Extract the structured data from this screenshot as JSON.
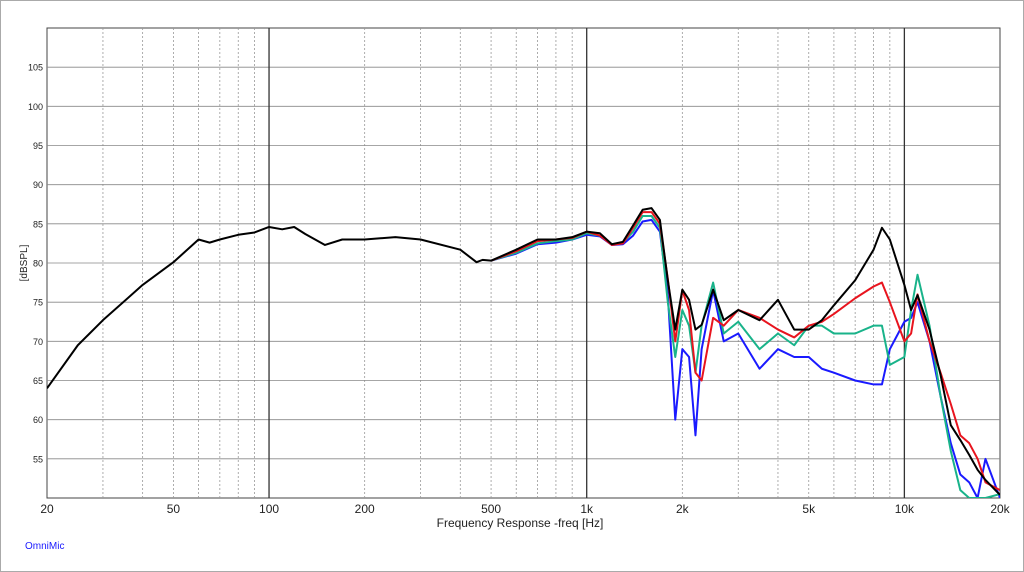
{
  "chart_data": {
    "type": "line",
    "xlabel": "Frequency Response -freq [Hz]",
    "ylabel": "[dBSPL]",
    "footnote": "OmniMic",
    "xscale": "log",
    "grid": true,
    "xlim": [
      20,
      20000
    ],
    "ylim": [
      50,
      110
    ],
    "xticks": [
      20,
      50,
      100,
      200,
      500,
      {
        "value": 1000,
        "label": "1k"
      },
      {
        "value": 2000,
        "label": "2k"
      },
      {
        "value": 5000,
        "label": "5k"
      },
      {
        "value": 10000,
        "label": "10k"
      },
      {
        "value": 20000,
        "label": "20k"
      }
    ],
    "yticks": [
      55,
      60,
      65,
      70,
      75,
      80,
      85,
      90,
      95,
      100,
      105
    ],
    "x": [
      20,
      25,
      30,
      40,
      50,
      60,
      65,
      70,
      80,
      90,
      100,
      110,
      120,
      130,
      150,
      170,
      200,
      250,
      300,
      400,
      450,
      470,
      500,
      600,
      700,
      800,
      900,
      1000,
      1100,
      1200,
      1300,
      1400,
      1500,
      1600,
      1700,
      1800,
      1900,
      2000,
      2100,
      2200,
      2300,
      2500,
      2700,
      3000,
      3500,
      4000,
      4500,
      5000,
      5500,
      6000,
      7000,
      8000,
      8500,
      9000,
      10000,
      10500,
      11000,
      12000,
      13000,
      14000,
      15000,
      16000,
      17000,
      18000,
      20000
    ],
    "series": [
      {
        "color": "#1a1aff",
        "values": [
          null,
          null,
          null,
          null,
          null,
          null,
          null,
          null,
          null,
          null,
          null,
          null,
          null,
          null,
          null,
          null,
          null,
          null,
          null,
          null,
          null,
          null,
          80.3,
          81.2,
          82.4,
          82.6,
          83,
          83.6,
          83.4,
          82.3,
          82.4,
          83.5,
          85.3,
          85.5,
          84,
          76,
          60,
          69,
          68,
          58,
          69,
          76.5,
          70,
          71,
          66.5,
          69,
          68,
          68,
          66.5,
          66,
          65,
          64.5,
          64.5,
          69,
          72.5,
          73,
          75,
          70,
          63,
          57,
          53,
          52,
          50,
          55,
          50
        ]
      },
      {
        "color": "#19b38a",
        "values": [
          null,
          null,
          null,
          null,
          null,
          null,
          null,
          null,
          null,
          null,
          null,
          null,
          null,
          null,
          null,
          null,
          null,
          null,
          null,
          null,
          null,
          null,
          80.3,
          81.3,
          82.5,
          82.8,
          83,
          83.8,
          83.5,
          82.4,
          82.6,
          84,
          86,
          86,
          84.5,
          75,
          68,
          74,
          72,
          66,
          72,
          77.5,
          71,
          72.5,
          69,
          71,
          69.5,
          72,
          72,
          71,
          71,
          72,
          72,
          67,
          68,
          74,
          78.5,
          72,
          63,
          56,
          51,
          50,
          50,
          50,
          50.5
        ]
      },
      {
        "color": "#e8141e",
        "values": [
          null,
          null,
          null,
          null,
          null,
          null,
          null,
          null,
          null,
          null,
          null,
          null,
          null,
          null,
          null,
          null,
          null,
          null,
          null,
          null,
          null,
          null,
          80.3,
          81.5,
          82.8,
          83,
          83.2,
          84,
          83.5,
          82.3,
          82.5,
          84.5,
          86.5,
          86.5,
          85,
          78,
          70,
          76.5,
          74,
          66,
          65,
          73,
          72,
          74,
          73,
          71.5,
          70.5,
          72,
          72.5,
          73.5,
          75.5,
          77,
          77.5,
          75,
          70,
          71,
          76,
          70,
          66,
          62,
          58,
          57,
          55,
          52,
          51
        ]
      },
      {
        "color": "#000000",
        "values": [
          64,
          69.5,
          72.7,
          77.2,
          80.1,
          83,
          82.6,
          83,
          83.6,
          83.9,
          84.6,
          84.3,
          84.6,
          83.7,
          82.3,
          83,
          83,
          83.3,
          83,
          81.7,
          80.1,
          80.4,
          80.3,
          81.7,
          83,
          83,
          83.3,
          84,
          83.8,
          82.4,
          82.7,
          84.8,
          86.8,
          87,
          85.5,
          77.8,
          71.5,
          76.6,
          75.3,
          71.5,
          72.1,
          76.6,
          72.7,
          74,
          72.7,
          75.3,
          71.5,
          71.5,
          72.7,
          74.6,
          77.8,
          81.7,
          84.5,
          83,
          77.2,
          74,
          75.9,
          71.5,
          65.7,
          59.3,
          57.4,
          55.5,
          53.6,
          52.3,
          50.4
        ]
      }
    ]
  }
}
